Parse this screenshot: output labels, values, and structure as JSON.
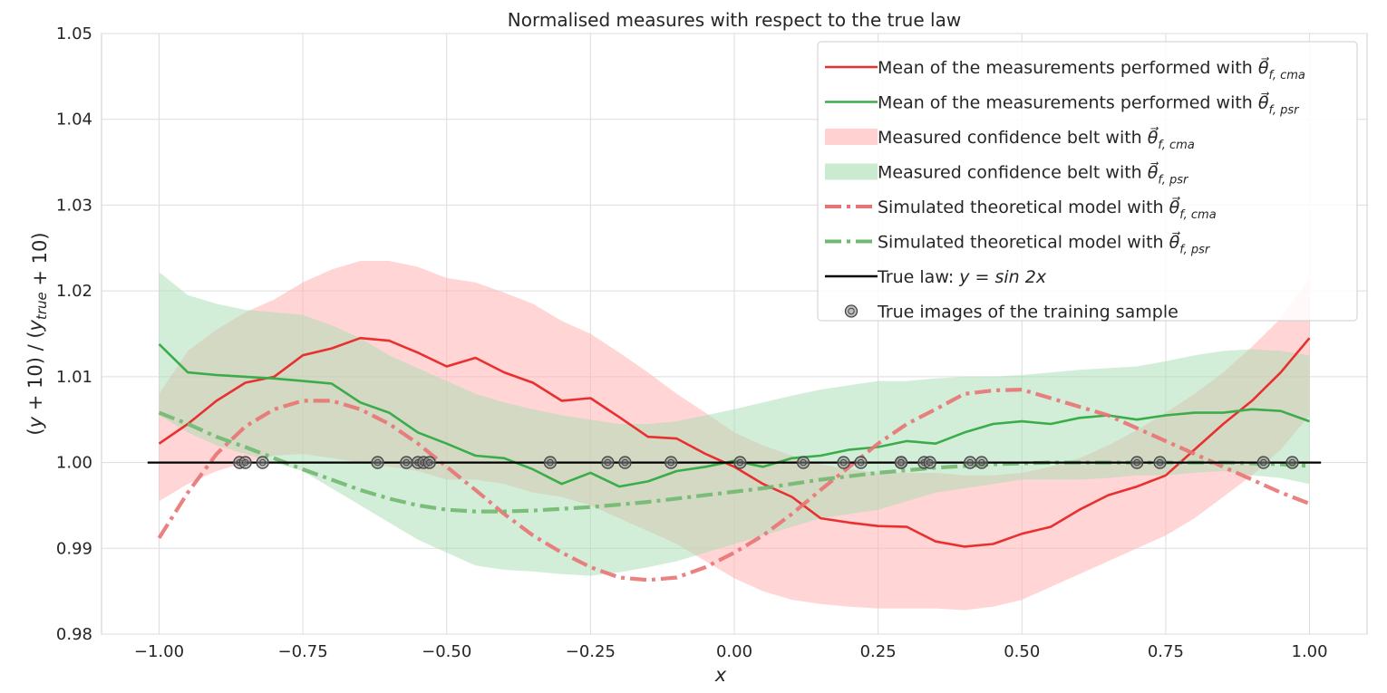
{
  "chart_data": {
    "type": "line",
    "title": "Normalised measures with respect to the true law",
    "xlabel": "x",
    "ylabel": "(y + 10) / (y_true + 10)",
    "xlim": [
      -1.1,
      1.1
    ],
    "ylim": [
      0.98,
      1.05
    ],
    "x_ticks": [
      -1.0,
      -0.75,
      -0.5,
      -0.25,
      0.0,
      0.25,
      0.5,
      0.75,
      1.0
    ],
    "x_tick_labels": [
      "−1.00",
      "−0.75",
      "−0.50",
      "−0.25",
      "0.00",
      "0.25",
      "0.50",
      "0.75",
      "1.00"
    ],
    "y_ticks": [
      0.98,
      0.99,
      1.0,
      1.01,
      1.02,
      1.03,
      1.04,
      1.05
    ],
    "y_tick_labels": [
      "0.98",
      "0.99",
      "1.00",
      "1.01",
      "1.02",
      "1.03",
      "1.04",
      "1.05"
    ],
    "grid": true,
    "legend_position": "top-right",
    "colors": {
      "red": "#e8302f",
      "green": "#3aad4a",
      "red_band": "#ffb3b3",
      "green_band": "#a8deb2",
      "red_dashdot": "#e97373",
      "green_dashdot": "#70b870",
      "true_law": "#000000",
      "points": "#444444"
    },
    "legend": [
      {
        "key": "mean_cma",
        "label": "Mean of the measurements performed with ",
        "sub": "f, cma",
        "style": "line",
        "color": "#e8302f"
      },
      {
        "key": "mean_psr",
        "label": "Mean of the measurements performed with ",
        "sub": "f, psr",
        "style": "line",
        "color": "#3aad4a"
      },
      {
        "key": "belt_cma",
        "label": "Measured confidence belt with ",
        "sub": "f, cma",
        "style": "patch",
        "color": "#ffb3b3"
      },
      {
        "key": "belt_psr",
        "label": "Measured confidence belt with ",
        "sub": "f, psr",
        "style": "patch",
        "color": "#a8deb2"
      },
      {
        "key": "model_cma",
        "label": "Simulated theoretical model with ",
        "sub": "f, cma",
        "style": "dashdot",
        "color": "#e97373"
      },
      {
        "key": "model_psr",
        "label": "Simulated theoretical model with ",
        "sub": "f, psr",
        "style": "dashdot",
        "color": "#70b870"
      },
      {
        "key": "true_law",
        "label": "True law: ",
        "math": "y = sin 2x",
        "style": "line",
        "color": "#000000"
      },
      {
        "key": "train_pts",
        "label": "True images of the training sample",
        "style": "marker",
        "color": "#444444"
      }
    ],
    "x": [
      -1.0,
      -0.95,
      -0.9,
      -0.85,
      -0.8,
      -0.75,
      -0.7,
      -0.65,
      -0.6,
      -0.55,
      -0.5,
      -0.45,
      -0.4,
      -0.35,
      -0.3,
      -0.25,
      -0.2,
      -0.15,
      -0.1,
      -0.05,
      0.0,
      0.05,
      0.1,
      0.15,
      0.2,
      0.25,
      0.3,
      0.35,
      0.4,
      0.45,
      0.5,
      0.55,
      0.6,
      0.65,
      0.7,
      0.75,
      0.8,
      0.85,
      0.9,
      0.95,
      1.0
    ],
    "series": [
      {
        "name": "Mean of the measurements performed with θf,cma",
        "color": "#e8302f",
        "values": [
          1.0022,
          1.0045,
          1.0072,
          1.0093,
          1.01,
          1.0125,
          1.0133,
          1.0145,
          1.0142,
          1.0128,
          1.0112,
          1.0122,
          1.0105,
          1.0093,
          1.0072,
          1.0075,
          1.0053,
          1.003,
          1.0028,
          1.001,
          0.9995,
          0.9975,
          0.996,
          0.9935,
          0.993,
          0.9926,
          0.9925,
          0.9908,
          0.9902,
          0.9905,
          0.9917,
          0.9925,
          0.9945,
          0.9962,
          0.9972,
          0.9985,
          1.0015,
          1.0045,
          1.0072,
          1.0105,
          1.0145
        ]
      },
      {
        "name": "Mean of the measurements performed with θf,psr",
        "color": "#3aad4a",
        "values": [
          1.0138,
          1.0105,
          1.0102,
          1.01,
          1.0098,
          1.0095,
          1.0092,
          1.007,
          1.0058,
          1.0035,
          1.0022,
          1.0008,
          1.0005,
          0.9992,
          0.9975,
          0.9988,
          0.9972,
          0.9978,
          0.999,
          0.9995,
          1.0002,
          0.9995,
          1.0005,
          1.0008,
          1.0015,
          1.0018,
          1.0025,
          1.0022,
          1.0035,
          1.0045,
          1.0048,
          1.0045,
          1.0052,
          1.0055,
          1.005,
          1.0055,
          1.0058,
          1.0058,
          1.0062,
          1.006,
          1.0048
        ]
      },
      {
        "name": "Simulated theoretical model with θf,cma",
        "color": "#e97373",
        "values": [
          0.9912,
          0.9965,
          1.001,
          1.0042,
          1.0062,
          1.0072,
          1.0072,
          1.0062,
          1.0045,
          1.0022,
          0.9995,
          0.9968,
          0.994,
          0.9915,
          0.9895,
          0.9878,
          0.9866,
          0.9863,
          0.9866,
          0.9878,
          0.9895,
          0.9915,
          0.994,
          0.9968,
          0.9995,
          1.0022,
          1.0045,
          1.0062,
          1.008,
          1.0084,
          1.0085,
          1.0075,
          1.0065,
          1.0055,
          1.004,
          1.0025,
          1.001,
          0.9995,
          0.998,
          0.9965,
          0.9952
        ]
      },
      {
        "name": "Simulated theoretical model with θf,psr",
        "color": "#70b870",
        "values": [
          1.0058,
          1.0045,
          1.003,
          1.0018,
          1.0005,
          0.9992,
          0.998,
          0.9968,
          0.9958,
          0.995,
          0.9945,
          0.9943,
          0.9943,
          0.9944,
          0.9946,
          0.9948,
          0.9951,
          0.9954,
          0.9958,
          0.9962,
          0.9966,
          0.997,
          0.9975,
          0.998,
          0.9984,
          0.9988,
          0.9991,
          0.9994,
          0.9996,
          0.9998,
          0.9999,
          1.0,
          1.0,
          1.0,
          1.0,
          1.0,
          1.0,
          1.0,
          0.9999,
          0.9998,
          0.9996
        ]
      },
      {
        "name": "True law: y = sin 2x",
        "color": "#000000",
        "values": [
          1.0,
          1.0,
          1.0,
          1.0,
          1.0,
          1.0,
          1.0,
          1.0,
          1.0,
          1.0,
          1.0,
          1.0,
          1.0,
          1.0,
          1.0,
          1.0,
          1.0,
          1.0,
          1.0,
          1.0,
          1.0,
          1.0,
          1.0,
          1.0,
          1.0,
          1.0,
          1.0,
          1.0,
          1.0,
          1.0,
          1.0,
          1.0,
          1.0,
          1.0,
          1.0,
          1.0,
          1.0,
          1.0,
          1.0,
          1.0,
          1.0
        ]
      }
    ],
    "bands": [
      {
        "name": "Measured confidence belt with θf,cma",
        "color": "#ffb3b3",
        "lower": [
          0.9955,
          0.9975,
          0.999,
          1.0,
          1.0008,
          1.001,
          1.0005,
          1.0,
          0.9995,
          0.999,
          0.998,
          0.998,
          0.9975,
          0.9965,
          0.996,
          0.995,
          0.9935,
          0.992,
          0.9905,
          0.9885,
          0.9865,
          0.985,
          0.984,
          0.9835,
          0.9832,
          0.983,
          0.983,
          0.983,
          0.9828,
          0.9832,
          0.984,
          0.9855,
          0.987,
          0.9885,
          0.99,
          0.9915,
          0.9935,
          0.996,
          0.9985,
          1.0015,
          1.0055
        ],
        "upper": [
          1.008,
          1.013,
          1.0155,
          1.0175,
          1.019,
          1.021,
          1.0225,
          1.0235,
          1.0235,
          1.0228,
          1.0215,
          1.021,
          1.0198,
          1.0185,
          1.0165,
          1.015,
          1.0128,
          1.0105,
          1.008,
          1.0058,
          1.0035,
          1.002,
          1.0008,
          0.9998,
          0.9992,
          0.9988,
          0.9988,
          0.9988,
          0.9985,
          0.9985,
          0.9988,
          0.9995,
          1.0005,
          1.002,
          1.0038,
          1.0058,
          1.008,
          1.0105,
          1.0135,
          1.0168,
          1.0215
        ]
      },
      {
        "name": "Measured confidence belt with θf,psr",
        "color": "#a8deb2",
        "lower": [
          1.0055,
          1.0035,
          1.002,
          1.001,
          1.0,
          0.999,
          0.997,
          0.995,
          0.993,
          0.991,
          0.9895,
          0.988,
          0.9875,
          0.9873,
          0.987,
          0.9868,
          0.9872,
          0.9878,
          0.9885,
          0.9895,
          0.9905,
          0.9915,
          0.9925,
          0.9935,
          0.994,
          0.9945,
          0.9955,
          0.9965,
          0.997,
          0.9975,
          0.998,
          0.998,
          0.998,
          0.9982,
          0.9985,
          0.9985,
          0.9988,
          0.999,
          0.9985,
          0.9982,
          0.9975
        ],
        "upper": [
          1.0222,
          1.0195,
          1.0185,
          1.0178,
          1.0175,
          1.0172,
          1.016,
          1.0145,
          1.0125,
          1.011,
          1.0095,
          1.008,
          1.007,
          1.0062,
          1.0055,
          1.005,
          1.0045,
          1.0045,
          1.0048,
          1.0055,
          1.0062,
          1.007,
          1.0078,
          1.0085,
          1.009,
          1.0095,
          1.0095,
          1.0098,
          1.01,
          1.01,
          1.0102,
          1.0105,
          1.0108,
          1.011,
          1.0112,
          1.0118,
          1.0125,
          1.013,
          1.0132,
          1.013,
          1.0125
        ]
      }
    ],
    "training_points": {
      "name": "True images of the training sample",
      "x": [
        -0.86,
        -0.85,
        -0.82,
        -0.62,
        -0.57,
        -0.55,
        -0.54,
        -0.53,
        -0.32,
        -0.22,
        -0.19,
        -0.11,
        0.01,
        0.12,
        0.19,
        0.22,
        0.29,
        0.29,
        0.33,
        0.34,
        0.41,
        0.43,
        0.7,
        0.74,
        0.92,
        0.97
      ],
      "y": [
        1.0,
        1.0,
        1.0,
        1.0,
        1.0,
        1.0,
        1.0,
        1.0,
        1.0,
        1.0,
        1.0,
        1.0,
        1.0,
        1.0,
        1.0,
        1.0,
        1.0,
        1.0,
        1.0,
        1.0,
        1.0,
        1.0,
        1.0,
        1.0,
        1.0,
        1.0
      ]
    }
  }
}
